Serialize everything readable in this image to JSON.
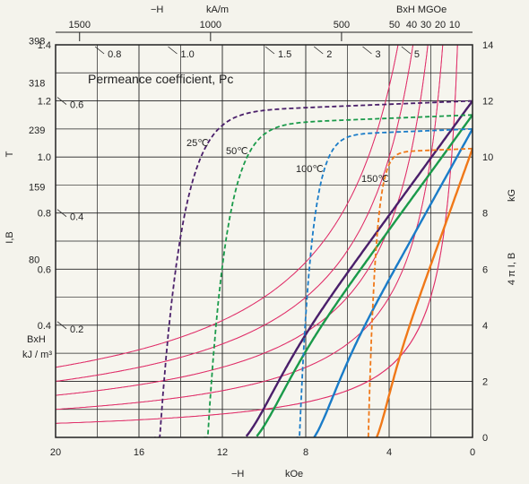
{
  "chart_data": {
    "type": "line",
    "title": "",
    "annotation": "Permeance coefficient, Pc",
    "grid": true,
    "bottom_axis": {
      "unit_label": "kOe",
      "sign_label": "−H",
      "range": [
        20,
        0
      ],
      "ticks": [
        20,
        16,
        12,
        8,
        4,
        0
      ]
    },
    "top_axis": {
      "unit_label": "kA/m",
      "sign_label": "−H",
      "ticks": [
        1500,
        1000,
        500
      ],
      "bh_unit_label": "BxH  MGOe",
      "bh_ticks": [
        50,
        40,
        30,
        20,
        10
      ]
    },
    "left_axis": {
      "label_main": "I,B",
      "label_unit": "T",
      "range": [
        0,
        1.4
      ],
      "ticks": [
        "0.4",
        "0.6",
        "0.8",
        "1.0",
        "1.2",
        "1.4"
      ],
      "bh_header": [
        "BxH",
        "kJ / m³"
      ],
      "bh_ticks": [
        "80",
        "159",
        "239",
        "318",
        "398"
      ]
    },
    "right_axis": {
      "label_main": "4 π I, B",
      "label_unit": "kG",
      "range": [
        0,
        14
      ],
      "ticks": [
        "0",
        "2",
        "4",
        "6",
        "8",
        "10",
        "12",
        "14"
      ]
    },
    "pc_labels": [
      "0.2",
      "0.4",
      "0.6",
      "0.8",
      "1.0",
      "1.5",
      "2",
      "3",
      "5"
    ],
    "temp_labels": [
      "25℃",
      "50℃",
      "100℃",
      "150℃"
    ],
    "bh_contours_MGOe": [
      10,
      20,
      30,
      40,
      50
    ],
    "series": [
      {
        "name": "25℃",
        "color": "#4a1f6a",
        "Br_kG": 12.0,
        "HcJ_kOe": 15.0,
        "Hcb_kOe": 10.9
      },
      {
        "name": "50℃",
        "color": "#1a9a4a",
        "Br_kG": 11.5,
        "HcJ_kOe": 12.7,
        "Hcb_kOe": 10.4
      },
      {
        "name": "100℃",
        "color": "#1a7cc8",
        "Br_kG": 11.0,
        "HcJ_kOe": 8.3,
        "Hcb_kOe": 7.6
      },
      {
        "name": "150℃",
        "color": "#f07818",
        "Br_kG": 10.3,
        "HcJ_kOe": 5.0,
        "Hcb_kOe": 4.6
      }
    ]
  },
  "colors": {
    "grid": "#222222",
    "contour": "#e0306a",
    "background": "#f4f3ec"
  }
}
